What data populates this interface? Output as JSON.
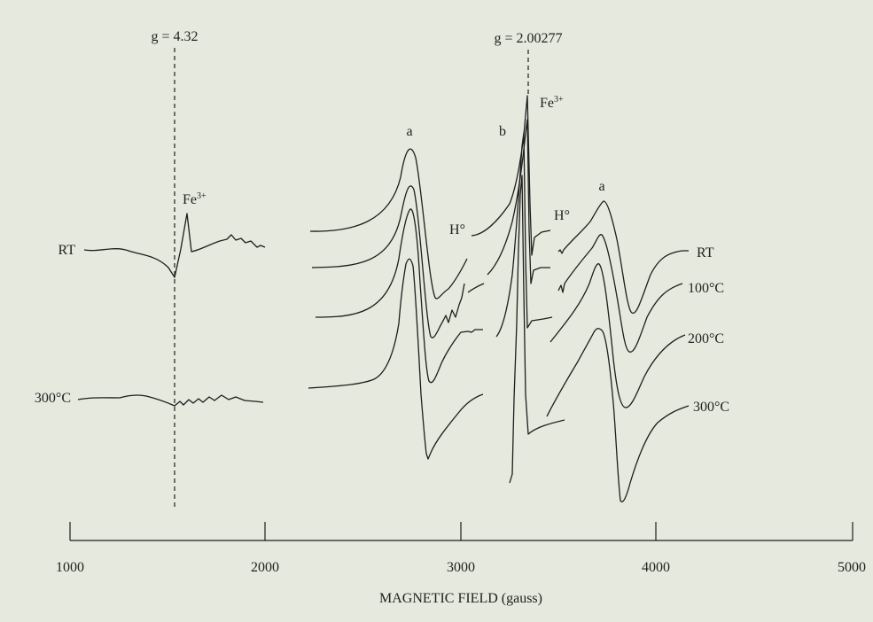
{
  "chart_data": {
    "type": "line",
    "title": "",
    "xlabel": "MAGNETIC FIELD (gauss)",
    "ylabel": "",
    "xlim": [
      1000,
      5000
    ],
    "grid": false,
    "legend": "none",
    "x_ticks": [
      {
        "value": 1000,
        "label": "1000"
      },
      {
        "value": 2000,
        "label": "2000"
      },
      {
        "value": 3000,
        "label": "3000"
      },
      {
        "value": 4000,
        "label": "4000"
      },
      {
        "value": 5000,
        "label": "5000"
      }
    ],
    "reference_lines": [
      {
        "label": "g = 4.32",
        "field_gauss": 1535
      },
      {
        "label": "g = 2.00277",
        "field_gauss": 3345
      }
    ],
    "panels": [
      {
        "name": "low-field",
        "field_range_gauss": [
          1080,
          2000
        ],
        "series": [
          {
            "label": "RT",
            "peak_label": "Fe",
            "peak_label_sup": "3+"
          },
          {
            "label": "300°C"
          }
        ]
      },
      {
        "name": "high-field",
        "field_range_gauss": [
          2230,
          4170
        ],
        "series": [
          {
            "label": "RT"
          },
          {
            "label": "100°C"
          },
          {
            "label": "200°C"
          },
          {
            "label": "300°C"
          }
        ],
        "peak_labels": [
          {
            "text": "a",
            "field_gauss": 2740
          },
          {
            "text": "b",
            "field_gauss": 3220
          },
          {
            "text": "Fe",
            "sup": "3+",
            "field_gauss": 3380
          },
          {
            "text": "a",
            "field_gauss": 3720
          }
        ],
        "species_labels": [
          {
            "text": "H°",
            "field_gauss": 2980
          },
          {
            "text": "H°",
            "field_gauss": 3570
          }
        ]
      }
    ]
  }
}
